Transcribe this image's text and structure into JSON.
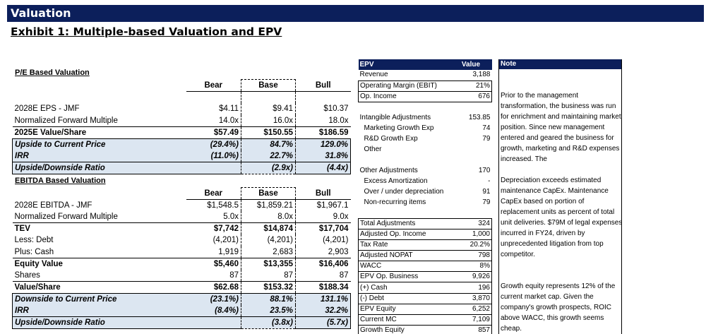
{
  "header": {
    "title": "Valuation",
    "exhibit": "Exhibit 1: Multiple-based Valuation and EPV"
  },
  "pe": {
    "title": "P/E Based Valuation",
    "columns": [
      "Bear",
      "Base",
      "Bull"
    ],
    "rows": [
      {
        "label": "",
        "values": [
          "",
          "",
          ""
        ]
      },
      {
        "label": "2028E EPS - JMF",
        "values": [
          "$4.11",
          "$9.41",
          "$10.37"
        ]
      },
      {
        "label": "Normalized Forward Multiple",
        "values": [
          "14.0x",
          "16.0x",
          "18.0x"
        ]
      },
      {
        "label": "2025E Value/Share",
        "values": [
          "$57.49",
          "$150.55",
          "$186.59"
        ]
      },
      {
        "label": "Upside to Current Price",
        "values": [
          "(29.4%)",
          "84.7%",
          "129.0%"
        ]
      },
      {
        "label": "IRR",
        "values": [
          "(11.0%)",
          "22.7%",
          "31.8%"
        ]
      },
      {
        "label": "Upside/Downside Ratio",
        "values": [
          "",
          "(2.9x)",
          "(4.4x)"
        ]
      }
    ]
  },
  "ebitda": {
    "title": "EBITDA Based Valuation",
    "columns": [
      "Bear",
      "Base",
      "Bull"
    ],
    "rows": [
      {
        "label": "",
        "values": [
          "",
          "",
          ""
        ]
      },
      {
        "label": "2028E EBITDA - JMF",
        "values": [
          "$1,548.5",
          "$1,859.21",
          "$1,967.1"
        ]
      },
      {
        "label": "Normalized Forward Multiple",
        "values": [
          "5.0x",
          "8.0x",
          "9.0x"
        ]
      },
      {
        "label": "TEV",
        "values": [
          "$7,742",
          "$14,874",
          "$17,704"
        ]
      },
      {
        "label": "Less: Debt",
        "values": [
          "(4,201)",
          "(4,201)",
          "(4,201)"
        ]
      },
      {
        "label": "Plus: Cash",
        "values": [
          "1,919",
          "2,683",
          "2,903"
        ]
      },
      {
        "label": "Equity Value",
        "values": [
          "$5,460",
          "$13,355",
          "$16,406"
        ]
      },
      {
        "label": "Shares",
        "values": [
          "87",
          "87",
          "87"
        ]
      },
      {
        "label": "Value/Share",
        "values": [
          "$62.68",
          "$153.32",
          "$188.34"
        ]
      },
      {
        "label": "Downside to Current Price",
        "values": [
          "(23.1%)",
          "88.1%",
          "131.1%"
        ]
      },
      {
        "label": "IRR",
        "values": [
          "(8.4%)",
          "23.5%",
          "32.2%"
        ]
      },
      {
        "label": "Upside/Downside Ratio",
        "values": [
          "",
          "(3.8x)",
          "(5.7x)"
        ]
      }
    ]
  },
  "epv": {
    "header": [
      "EPV",
      "Value"
    ],
    "rows": [
      {
        "label": "Revenue",
        "value": "3,188"
      },
      {
        "label": "Operating Margin (EBIT)",
        "value": "21%"
      },
      {
        "label": "Op. Income",
        "value": "676"
      },
      {
        "label": "",
        "value": ""
      },
      {
        "label": "Intangible Adjustments",
        "value": "153.85"
      },
      {
        "label": "Marketing Growth Exp",
        "value": "74"
      },
      {
        "label": "R&D Growth Exp",
        "value": "79"
      },
      {
        "label": "Other",
        "value": ""
      },
      {
        "label": "",
        "value": ""
      },
      {
        "label": "Other Adjustments",
        "value": "170"
      },
      {
        "label": "Excess Amortization",
        "value": "-"
      },
      {
        "label": "Over / under depreciation",
        "value": "91"
      },
      {
        "label": "Non-recurring items",
        "value": "79"
      },
      {
        "label": "",
        "value": ""
      },
      {
        "label": "Total Adjustments",
        "value": "324"
      },
      {
        "label": "Adjusted Op. Income",
        "value": "1,000"
      },
      {
        "label": "Tax Rate",
        "value": "20.2%"
      },
      {
        "label": "Adjusted NOPAT",
        "value": "798"
      },
      {
        "label": "WACC",
        "value": "8%"
      },
      {
        "label": "EPV Op. Business",
        "value": "9,926"
      },
      {
        "label": "(+) Cash",
        "value": "196"
      },
      {
        "label": "(-) Debt",
        "value": "3,870"
      },
      {
        "label": "EPV Equity",
        "value": "6,252"
      },
      {
        "label": "Current MC",
        "value": "7,109"
      },
      {
        "label": "Growth Equity",
        "value": "857"
      }
    ]
  },
  "note": {
    "header": "Note",
    "paragraphs": [
      "Prior to the management transformation, the business was run for enrichment and maintaining market position. Since new management entered and geared the business for growth, marketing and R&D expenses increased.  The",
      " Depreciation exceeds estimated maintenance CapEx. Maintenance CapEx based on portion of replacement units as percent of total unit deliveries. $79M of legal expenses incurred in FY24, driven by unprecedented litigation from top competitor.",
      "Growth equity represents 12% of the current market cap. Given the company's growth prospects, ROIC above WACC, this growth seems cheap."
    ]
  }
}
